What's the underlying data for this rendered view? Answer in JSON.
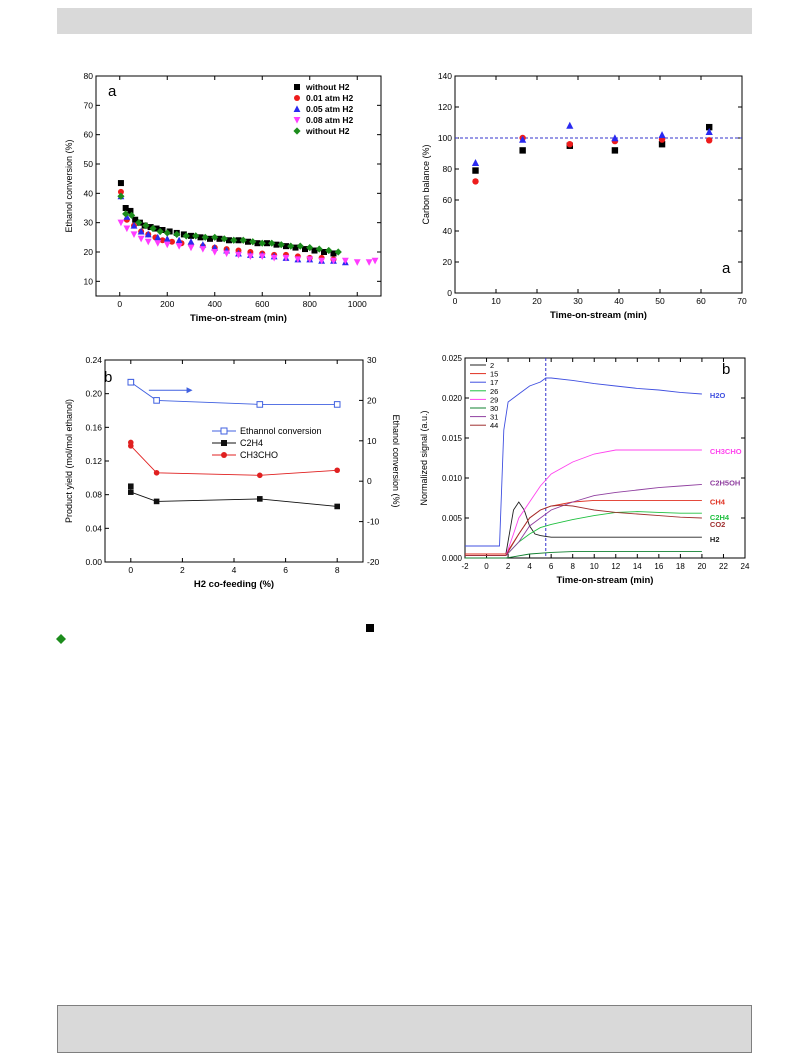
{
  "colors": {
    "black": "#000000",
    "red": "#ee1c1c",
    "blue": "#2a2af0",
    "magenta": "#ff3cff",
    "green": "#1c8c1c",
    "grey_bar": "#d9d9d9",
    "line_blue": "#4060e0",
    "line_red": "#e02020",
    "line_black": "#101010"
  },
  "stray_marks": [
    "green-diamond-icon",
    "black-square-icon"
  ],
  "chart_data": [
    {
      "type": "scatter",
      "panel_label": "a",
      "xlabel": "Time-on-stream (min)",
      "ylabel": "Ethanol conversion (%)",
      "xlim": [
        -100,
        1100
      ],
      "ylim": [
        5,
        80
      ],
      "xticks": [
        0,
        200,
        400,
        600,
        800,
        1000
      ],
      "yticks": [
        10,
        20,
        30,
        40,
        50,
        60,
        70,
        80
      ],
      "legend_position": "top-right",
      "series": [
        {
          "name": "without H2",
          "marker": "square",
          "color": "#000000",
          "x": [
            5,
            25,
            45,
            65,
            85,
            105,
            130,
            155,
            180,
            210,
            240,
            270,
            300,
            340,
            380,
            420,
            460,
            500,
            540,
            580,
            620,
            660,
            700,
            740,
            780,
            820,
            860,
            900
          ],
          "y": [
            43.5,
            35,
            34,
            31,
            30,
            29,
            28.5,
            28,
            27.5,
            27,
            26.5,
            26,
            25.5,
            25,
            24.5,
            24.5,
            24,
            24,
            23.5,
            23,
            23,
            22.5,
            22,
            21.5,
            21,
            20.5,
            20,
            19.5
          ]
        },
        {
          "name": "0.01 atm H2",
          "marker": "circle",
          "color": "#ee1c1c",
          "x": [
            5,
            30,
            60,
            90,
            120,
            150,
            180,
            220,
            260,
            300,
            350,
            400,
            450,
            500,
            550,
            600,
            650,
            700,
            750,
            800,
            850,
            900
          ],
          "y": [
            40.5,
            31,
            29,
            27,
            26,
            25,
            24,
            23.5,
            23,
            22.5,
            22,
            21.5,
            21,
            20.5,
            20,
            19.5,
            19,
            19,
            18.5,
            18,
            18,
            17.5
          ]
        },
        {
          "name": "0.05 atm H2",
          "marker": "triangle",
          "color": "#2a2af0",
          "x": [
            5,
            30,
            60,
            90,
            120,
            160,
            200,
            250,
            300,
            350,
            400,
            450,
            500,
            550,
            600,
            650,
            700,
            750,
            800,
            850,
            900,
            950
          ],
          "y": [
            39,
            32,
            29,
            27,
            26,
            25,
            24.5,
            24,
            23.5,
            22.5,
            21.5,
            20.5,
            19.5,
            19,
            19,
            18.5,
            18,
            17.5,
            17.5,
            17,
            17,
            16.5
          ]
        },
        {
          "name": "0.08 atm H2",
          "marker": "triangle-down",
          "color": "#ff3cff",
          "x": [
            5,
            30,
            60,
            90,
            120,
            160,
            200,
            250,
            300,
            350,
            400,
            450,
            500,
            550,
            600,
            650,
            700,
            750,
            800,
            850,
            900,
            950,
            1000,
            1050,
            1075
          ],
          "y": [
            30,
            28,
            26,
            24.5,
            23.5,
            23,
            22.5,
            22,
            21.5,
            21,
            20,
            19.5,
            19,
            18.5,
            18.5,
            18,
            18,
            17.5,
            17.5,
            17,
            17,
            17,
            16.5,
            16.5,
            17
          ]
        },
        {
          "name": "without H2",
          "marker": "diamond",
          "color": "#1c8c1c",
          "x": [
            5,
            25,
            50,
            80,
            110,
            140,
            170,
            200,
            240,
            280,
            320,
            360,
            400,
            440,
            480,
            520,
            560,
            600,
            640,
            680,
            720,
            760,
            800,
            840,
            880,
            920
          ],
          "y": [
            39,
            33,
            32.5,
            30,
            29,
            28,
            27,
            26.5,
            26,
            25.5,
            25.5,
            25,
            25,
            24.5,
            24,
            24,
            23.5,
            23,
            23,
            22.5,
            22,
            22,
            21.5,
            21,
            20.5,
            20
          ]
        }
      ]
    },
    {
      "type": "scatter",
      "panel_label": "a",
      "xlabel": "Time-on-stream (min)",
      "ylabel": "Carbon balance (%)",
      "xlim": [
        0,
        70
      ],
      "ylim": [
        0,
        140
      ],
      "xticks": [
        0,
        10,
        20,
        30,
        40,
        50,
        60,
        70
      ],
      "yticks": [
        0,
        20,
        40,
        60,
        80,
        100,
        120,
        140
      ],
      "reference_line_y": 100,
      "series": [
        {
          "marker": "square",
          "color": "#000000",
          "x": [
            5,
            16.5,
            28,
            39,
            50.5,
            62
          ],
          "y": [
            79,
            92,
            95,
            92,
            96,
            107
          ]
        },
        {
          "marker": "circle",
          "color": "#ee1c1c",
          "x": [
            5,
            16.5,
            28,
            39,
            50.5,
            62
          ],
          "y": [
            72,
            100,
            96,
            98,
            99,
            98.5
          ]
        },
        {
          "marker": "triangle",
          "color": "#2a2af0",
          "x": [
            5,
            16.5,
            28,
            39,
            50.5,
            62
          ],
          "y": [
            84,
            99,
            108,
            100,
            102,
            104
          ]
        }
      ]
    },
    {
      "type": "line",
      "panel_label": "b",
      "xlabel": "H2 co-feeding (%)",
      "ylabel": "Product yield (mol/mol ethanol)",
      "y2label": "Ethanol conversion (%)",
      "xlim": [
        -1,
        9
      ],
      "ylim": [
        0,
        0.24
      ],
      "y2lim": [
        -20,
        30
      ],
      "xticks": [
        0,
        2,
        4,
        6,
        8
      ],
      "yticks": [
        0.0,
        0.04,
        0.08,
        0.12,
        0.16,
        0.2,
        0.24
      ],
      "y2ticks": [
        -20,
        -10,
        0,
        10,
        20,
        30
      ],
      "legend_position": "center-right",
      "series": [
        {
          "name": "Ethannol conversion",
          "axis": "right",
          "marker": "square-open",
          "color": "#4060e0",
          "x": [
            0,
            0,
            1,
            5,
            8
          ],
          "y": [
            24.5,
            24.5,
            20,
            19,
            19
          ]
        },
        {
          "name": "C2H4",
          "axis": "left",
          "marker": "square",
          "color": "#101010",
          "x": [
            0,
            0,
            1,
            5,
            8
          ],
          "y": [
            0.09,
            0.083,
            0.072,
            0.075,
            0.066
          ]
        },
        {
          "name": "CH3CHO",
          "axis": "left",
          "marker": "circle",
          "color": "#e02020",
          "x": [
            0,
            0,
            1,
            5,
            8
          ],
          "y": [
            0.142,
            0.138,
            0.106,
            0.103,
            0.109
          ]
        }
      ]
    },
    {
      "type": "line",
      "panel_label": "b",
      "xlabel": "Time-on-stream (min)",
      "ylabel": "Normalized signal (a.u.)",
      "xlim": [
        -2,
        24
      ],
      "ylim": [
        0,
        0.025
      ],
      "xticks": [
        -2,
        0,
        2,
        4,
        6,
        8,
        10,
        12,
        14,
        16,
        18,
        20,
        22,
        24
      ],
      "yticks": [
        0.0,
        0.005,
        0.01,
        0.015,
        0.02,
        0.025
      ],
      "reference_line_x": 5.5,
      "legend_position": "top-left",
      "series": [
        {
          "name": "2",
          "label": "H2",
          "color": "#202020",
          "x": [
            -2,
            1.8,
            2.5,
            3,
            3.5,
            4,
            4.5,
            5,
            5.5,
            6,
            8,
            12,
            16,
            20
          ],
          "y": [
            0.0005,
            0.0005,
            0.006,
            0.007,
            0.006,
            0.004,
            0.003,
            0.0028,
            0.0027,
            0.0026,
            0.0026,
            0.0026,
            0.0026,
            0.0026
          ]
        },
        {
          "name": "15",
          "label": "CH4",
          "color": "#e03020",
          "x": [
            -2,
            1.8,
            3,
            4,
            5,
            6,
            8,
            10,
            12,
            14,
            16,
            18,
            20
          ],
          "y": [
            0.0005,
            0.0005,
            0.003,
            0.005,
            0.006,
            0.0065,
            0.007,
            0.0072,
            0.0072,
            0.0072,
            0.0072,
            0.0072,
            0.0072
          ]
        },
        {
          "name": "17",
          "label": "H2O",
          "color": "#4050e0",
          "x": [
            -2,
            1.2,
            1.6,
            2,
            3,
            4,
            5,
            5.5,
            6,
            8,
            10,
            12,
            14,
            16,
            18,
            20
          ],
          "y": [
            0.0015,
            0.0015,
            0.016,
            0.0195,
            0.0205,
            0.0215,
            0.022,
            0.0225,
            0.0225,
            0.0222,
            0.0218,
            0.0215,
            0.0212,
            0.021,
            0.0207,
            0.0205
          ]
        },
        {
          "name": "26",
          "label": "C2H4",
          "color": "#20c040",
          "x": [
            -2,
            1.8,
            3,
            4,
            5,
            6,
            8,
            10,
            12,
            14,
            16,
            18,
            20
          ],
          "y": [
            0.0003,
            0.0003,
            0.002,
            0.003,
            0.0038,
            0.0042,
            0.0048,
            0.0053,
            0.0057,
            0.0058,
            0.0057,
            0.0056,
            0.0056
          ]
        },
        {
          "name": "29",
          "label": "CH3CHO",
          "color": "#ff44ee",
          "x": [
            -2,
            1.8,
            2.5,
            3,
            4,
            5,
            6,
            8,
            10,
            12,
            14,
            16,
            18,
            20
          ],
          "y": [
            0.0003,
            0.0003,
            0.003,
            0.005,
            0.007,
            0.009,
            0.0105,
            0.012,
            0.013,
            0.0135,
            0.0135,
            0.0135,
            0.0135,
            0.0135
          ]
        },
        {
          "name": "30",
          "label": "",
          "color": "#108030",
          "x": [
            -2,
            1.8,
            4,
            6,
            8,
            12,
            16,
            20
          ],
          "y": [
            0.0,
            0.0,
            0.0005,
            0.0007,
            0.0008,
            0.0008,
            0.0008,
            0.0008
          ]
        },
        {
          "name": "31",
          "label": "C2H5OH",
          "color": "#9040a0",
          "x": [
            -2,
            1.8,
            3,
            4,
            5,
            6,
            8,
            10,
            12,
            14,
            16,
            18,
            20
          ],
          "y": [
            0.0003,
            0.0003,
            0.002,
            0.004,
            0.005,
            0.006,
            0.007,
            0.0078,
            0.0082,
            0.0085,
            0.0088,
            0.009,
            0.0092
          ]
        },
        {
          "name": "44",
          "label": "CO2",
          "color": "#a03030",
          "x": [
            -2,
            1.8,
            3,
            4,
            5,
            6,
            7,
            8,
            10,
            12,
            14,
            16,
            18,
            20
          ],
          "y": [
            0.0003,
            0.0003,
            0.003,
            0.005,
            0.006,
            0.0065,
            0.0066,
            0.0065,
            0.006,
            0.0057,
            0.0055,
            0.0053,
            0.0051,
            0.005
          ]
        }
      ]
    }
  ]
}
